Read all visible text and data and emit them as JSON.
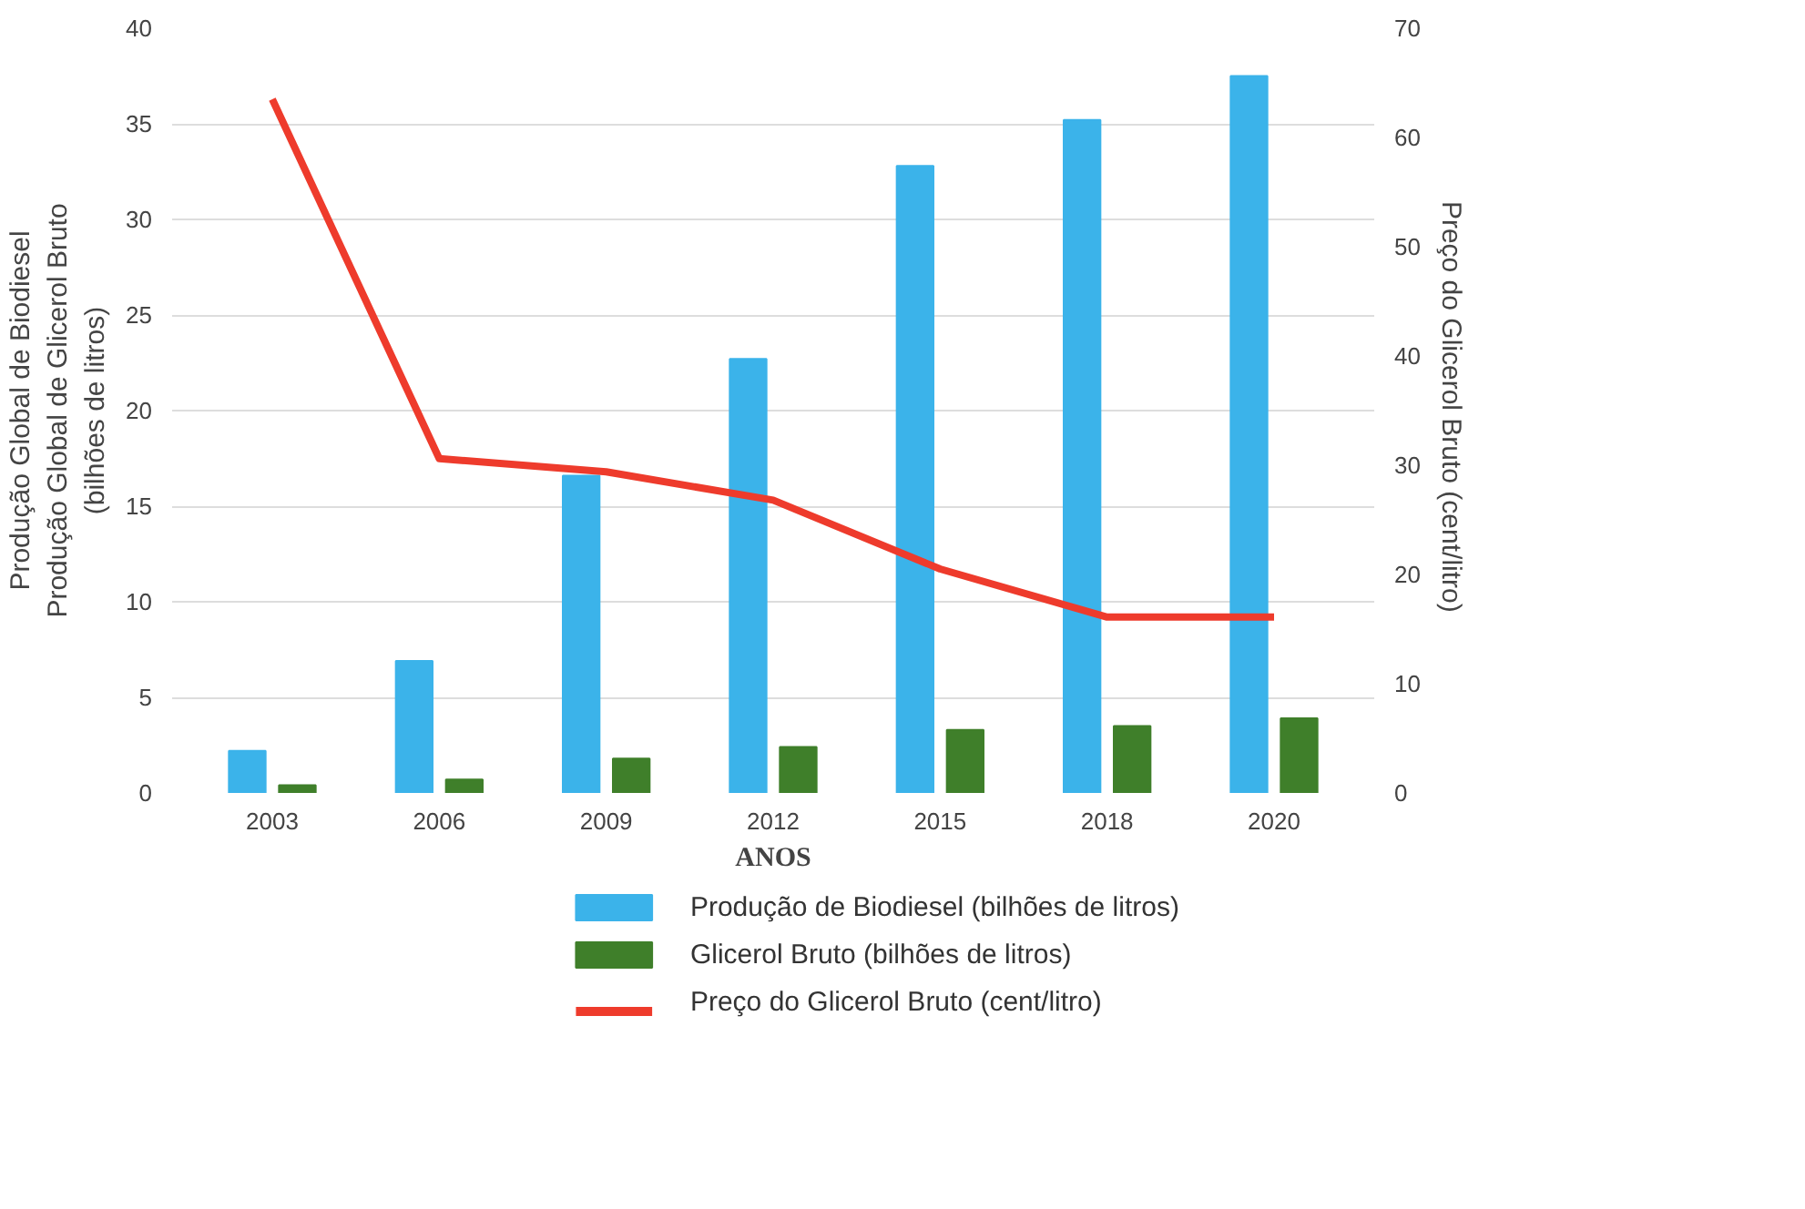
{
  "chart_data": {
    "type": "bar",
    "categories": [
      "2003",
      "2006",
      "2009",
      "2012",
      "2015",
      "2018",
      "2020"
    ],
    "xlabel": "ANOS",
    "ylabel": "Produção Global de Biodiesel\nProdução Global de Glicerol Bruto\n(bilhões de litros)",
    "y2label": "Preço  do Glicerol Bruto (cent/litro)",
    "series": [
      {
        "name": "Produção de Biodiesel (bilhões de litros)",
        "color": "#3bb3ea",
        "values": [
          2.2,
          6.9,
          16.6,
          22.7,
          32.8,
          35.2,
          37.5
        ]
      },
      {
        "name": "Glicerol Bruto (bilhões de litros)",
        "color": "#3f7f2a",
        "values": [
          0.4,
          0.7,
          1.8,
          2.4,
          3.3,
          3.5,
          3.9
        ]
      },
      {
        "name": "Preço  do Glicerol Bruto (cent/litro)",
        "color": "#ee3b2c",
        "type": "line",
        "axis": "y2",
        "values": [
          63.5,
          30.6,
          29.4,
          26.8,
          20.5,
          16.1,
          16.1
        ]
      }
    ],
    "ylim": [
      0,
      40
    ],
    "yticks": [
      0,
      5,
      10,
      15,
      20,
      25,
      30,
      35,
      40
    ],
    "y2lim": [
      0,
      70
    ],
    "y2ticks": [
      0,
      10,
      20,
      30,
      40,
      50,
      60,
      70
    ],
    "grid": "y",
    "legend": "bottom",
    "marker": "none",
    "line_style": "solid"
  }
}
